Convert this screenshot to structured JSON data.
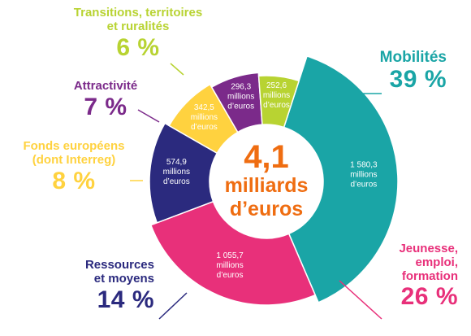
{
  "center": {
    "amount": "4,1",
    "line2": "milliards",
    "line3": "d’euros"
  },
  "chart_data": {
    "type": "pie",
    "series": [
      {
        "name": "Mobilités",
        "value": 1580.3,
        "value_text": "1 580,3",
        "percent": "39 %",
        "color": "#1aa5a6"
      },
      {
        "name": "Jeunesse, emploi, formation",
        "value": 1055.7,
        "value_text": "1 055,7",
        "percent": "26 %",
        "color": "#e8307a"
      },
      {
        "name": "Ressources et moyens",
        "value": 574.9,
        "value_text": "574,9",
        "percent": "14 %",
        "color": "#2b2a7e"
      },
      {
        "name": "Fonds européens (dont Interreg)",
        "value": 342.5,
        "value_text": "342,5",
        "percent": "8 %",
        "color": "#ffd23f"
      },
      {
        "name": "Attractivité",
        "value": 296.3,
        "value_text": "296,3",
        "percent": "7 %",
        "color": "#7b2a8a"
      },
      {
        "name": "Transitions, territoires et ruralités",
        "value": 252.6,
        "value_text": "252,6",
        "percent": "6 %",
        "color": "#b8d332"
      }
    ],
    "unit_lines": [
      "millions",
      "d’euros"
    ]
  },
  "labels": {
    "mobilites": {
      "name": "Mobilités",
      "pct": "39 %"
    },
    "jeunesse": {
      "line1": "Jeunesse,",
      "line2": "emploi,",
      "line3": "formation",
      "pct": "26 %"
    },
    "ressources": {
      "line1": "Ressources",
      "line2": "et moyens",
      "pct": "14 %"
    },
    "fonds": {
      "line1": "Fonds européens",
      "line2": "(dont Interreg)",
      "pct": "8 %"
    },
    "attractivite": {
      "name": "Attractivité",
      "pct": "7 %"
    },
    "transitions": {
      "line1": "Transitions, territoires",
      "line2": "et ruralités",
      "pct": "6 %"
    }
  }
}
